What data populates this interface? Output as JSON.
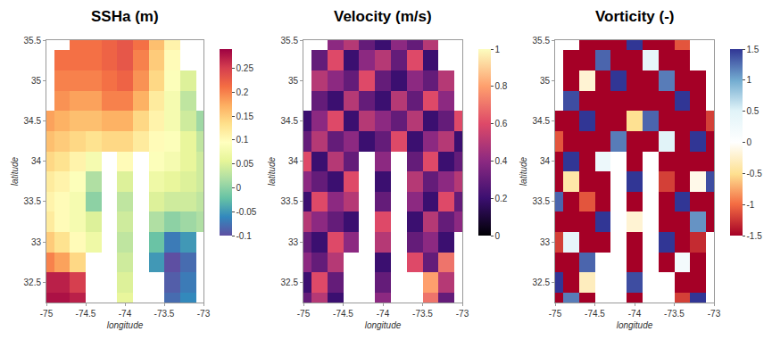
{
  "chart_data": [
    {
      "type": "heatmap",
      "title": "SSHa (m)",
      "x_label": "longitude",
      "y_label": "latitude",
      "x": [
        -75,
        -74.8,
        -74.6,
        -74.4,
        -74.2,
        -74.0,
        -73.8,
        -73.6,
        -73.4,
        -73.2,
        -73.0
      ],
      "y": [
        32.25,
        32.5,
        32.75,
        33.0,
        33.25,
        33.5,
        33.75,
        34.0,
        34.25,
        34.5,
        34.75,
        35.0,
        35.25,
        35.5
      ],
      "z": [
        [
          0.28,
          0.28,
          0.27,
          null,
          null,
          0.06,
          null,
          null,
          -0.08,
          -0.06,
          null
        ],
        [
          0.27,
          0.27,
          0.25,
          null,
          null,
          0.05,
          null,
          null,
          -0.09,
          -0.07,
          null
        ],
        [
          0.2,
          0.18,
          0.14,
          null,
          null,
          0.04,
          null,
          -0.05,
          -0.1,
          -0.08,
          null
        ],
        [
          0.15,
          0.13,
          0.1,
          0.07,
          null,
          0.03,
          null,
          -0.02,
          -0.07,
          -0.05,
          null
        ],
        [
          0.12,
          0.1,
          0.08,
          0.05,
          null,
          0.04,
          null,
          0.02,
          0.0,
          0.01,
          0.02
        ],
        [
          0.11,
          0.1,
          0.08,
          0.0,
          null,
          0.03,
          null,
          0.05,
          0.04,
          0.04,
          0.03
        ],
        [
          0.12,
          0.11,
          0.09,
          0.02,
          null,
          0.05,
          null,
          0.07,
          0.06,
          0.05,
          0.04
        ],
        [
          0.14,
          0.13,
          0.11,
          0.08,
          null,
          0.1,
          null,
          0.09,
          0.08,
          0.06,
          0.04
        ],
        [
          0.16,
          0.15,
          0.14,
          0.13,
          0.14,
          0.14,
          0.12,
          0.1,
          0.09,
          0.06,
          0.03
        ],
        [
          0.18,
          0.17,
          0.16,
          0.16,
          0.17,
          0.17,
          0.14,
          0.11,
          0.08,
          0.04,
          0.01
        ],
        [
          null,
          0.19,
          0.18,
          0.18,
          0.2,
          0.2,
          0.17,
          0.12,
          0.08,
          0.03,
          null
        ],
        [
          null,
          0.2,
          0.2,
          0.2,
          0.21,
          0.22,
          0.19,
          0.14,
          0.09,
          0.05,
          null
        ],
        [
          null,
          0.21,
          0.21,
          0.21,
          0.22,
          0.23,
          0.2,
          0.15,
          0.1,
          null,
          null
        ],
        [
          null,
          null,
          0.21,
          0.21,
          0.22,
          0.23,
          0.21,
          0.16,
          0.11,
          null,
          null
        ]
      ],
      "xlim": [
        -75,
        -73
      ],
      "ylim": [
        32.25,
        35.5
      ],
      "xticks": [
        -75,
        -74.5,
        -74,
        -73.5,
        -73
      ],
      "yticks": [
        32.5,
        33,
        33.5,
        34,
        34.5,
        35,
        35.5
      ],
      "colorbar_range": [
        -0.1,
        0.29
      ],
      "colorbar_ticks": [
        -0.1,
        -0.05,
        0,
        0.05,
        0.1,
        0.15,
        0.2,
        0.25
      ]
    },
    {
      "type": "heatmap",
      "title": "Velocity (m/s)",
      "x_label": "longitude",
      "y_label": "latitude",
      "x": [
        -75,
        -74.8,
        -74.6,
        -74.4,
        -74.2,
        -74.0,
        -73.8,
        -73.6,
        -73.4,
        -73.2,
        -73.0
      ],
      "y": [
        32.25,
        32.5,
        32.75,
        33.0,
        33.25,
        33.5,
        33.75,
        34.0,
        34.25,
        34.5,
        34.75,
        35.0,
        35.25,
        35.5
      ],
      "z": [
        [
          0.3,
          0.5,
          0.2,
          null,
          null,
          0.4,
          null,
          null,
          0.7,
          0.3,
          null
        ],
        [
          0.2,
          0.6,
          0.3,
          null,
          null,
          0.3,
          null,
          null,
          0.8,
          0.5,
          null
        ],
        [
          0.4,
          0.3,
          0.5,
          null,
          null,
          0.2,
          null,
          0.6,
          0.3,
          0.7,
          null
        ],
        [
          0.3,
          0.2,
          0.6,
          0.4,
          null,
          0.5,
          null,
          0.3,
          0.4,
          0.2,
          null
        ],
        [
          0.5,
          0.4,
          0.3,
          0.2,
          null,
          0.6,
          null,
          0.2,
          0.5,
          0.3,
          0.4
        ],
        [
          0.2,
          0.6,
          0.4,
          0.5,
          null,
          0.3,
          null,
          0.4,
          0.2,
          0.6,
          0.3
        ],
        [
          0.4,
          0.3,
          0.2,
          0.6,
          null,
          0.2,
          null,
          0.5,
          0.3,
          0.4,
          0.5
        ],
        [
          0.6,
          0.2,
          0.5,
          0.3,
          null,
          0.4,
          null,
          0.3,
          0.6,
          0.2,
          0.3
        ],
        [
          0.3,
          0.5,
          0.3,
          0.4,
          0.2,
          0.3,
          0.6,
          0.2,
          0.4,
          0.5,
          0.2
        ],
        [
          0.2,
          0.4,
          0.6,
          0.2,
          0.5,
          0.4,
          0.3,
          0.5,
          0.2,
          0.3,
          0.6
        ],
        [
          null,
          0.3,
          0.2,
          0.5,
          0.3,
          0.2,
          0.5,
          0.3,
          0.6,
          0.4,
          null
        ],
        [
          null,
          0.5,
          0.4,
          0.3,
          0.6,
          0.3,
          0.2,
          0.4,
          0.3,
          0.5,
          null
        ],
        [
          null,
          0.3,
          0.6,
          0.2,
          0.4,
          0.5,
          0.3,
          0.6,
          0.2,
          null,
          null
        ],
        [
          null,
          null,
          0.4,
          0.5,
          0.3,
          0.2,
          0.4,
          0.3,
          0.5,
          null,
          null
        ]
      ],
      "xlim": [
        -75,
        -73
      ],
      "ylim": [
        32.25,
        35.5
      ],
      "xticks": [
        -75,
        -74.5,
        -74,
        -73.5,
        -73
      ],
      "yticks": [
        32.5,
        33,
        33.5,
        34,
        34.5,
        35,
        35.5
      ],
      "colorbar_range": [
        0,
        1
      ],
      "colorbar_ticks": [
        0,
        0.2,
        0.4,
        0.6,
        0.8,
        1
      ]
    },
    {
      "type": "heatmap",
      "title": "Vorticity (-)",
      "x_label": "longitude",
      "y_label": "latitude",
      "x": [
        -75,
        -74.8,
        -74.6,
        -74.4,
        -74.2,
        -74.0,
        -73.8,
        -73.6,
        -73.4,
        -73.2,
        -73.0
      ],
      "y": [
        32.25,
        32.5,
        32.75,
        33.0,
        33.25,
        33.5,
        33.75,
        34.0,
        34.25,
        34.5,
        34.75,
        35.0,
        35.25,
        35.5
      ],
      "z": [
        [
          -1.5,
          1.2,
          -1.5,
          null,
          null,
          -1.5,
          null,
          null,
          -1.2,
          1.5,
          null
        ],
        [
          1.5,
          -1.5,
          -0.3,
          null,
          null,
          1.4,
          null,
          null,
          -1.5,
          -1.5,
          null
        ],
        [
          -1.5,
          -1.5,
          1.3,
          null,
          null,
          -1.5,
          null,
          -1.5,
          0.2,
          -1.5,
          null
        ],
        [
          -1.2,
          0.4,
          -1.5,
          -1.5,
          null,
          -1.5,
          null,
          1.5,
          -1.5,
          -1.3,
          null
        ],
        [
          -1.5,
          -1.5,
          -1.5,
          1.5,
          null,
          -0.2,
          null,
          -1.5,
          -1.5,
          1.1,
          -1.5
        ],
        [
          1.3,
          -1.5,
          -1.1,
          -1.5,
          null,
          -1.5,
          null,
          -1.5,
          1.5,
          -1.5,
          -1.5
        ],
        [
          -1.5,
          -0.4,
          -1.5,
          -1.5,
          null,
          1.5,
          null,
          -1.2,
          -1.5,
          -0.1,
          1.4
        ],
        [
          -1.5,
          1.5,
          -1.5,
          0.3,
          null,
          -1.5,
          null,
          -1.5,
          -1.5,
          -1.5,
          -1.5
        ],
        [
          -1.1,
          -1.5,
          -1.5,
          -1.5,
          1.2,
          -1.5,
          -1.5,
          0.5,
          -1.5,
          1.5,
          -1.5
        ],
        [
          -1.5,
          -1.5,
          1.5,
          -1.5,
          -1.5,
          -0.5,
          1.3,
          -1.5,
          -1.5,
          -1.5,
          -1.2
        ],
        [
          null,
          1.4,
          -1.5,
          -1.5,
          -1.5,
          -1.5,
          -1.5,
          -1.5,
          1.5,
          -1.5,
          null
        ],
        [
          null,
          -1.5,
          -0.2,
          -1.5,
          1.5,
          -1.5,
          -1.5,
          1.2,
          -1.5,
          -1.5,
          null
        ],
        [
          null,
          -1.5,
          -1.5,
          1.3,
          -1.5,
          -1.5,
          0.4,
          -1.5,
          -1.5,
          null,
          null
        ],
        [
          null,
          null,
          -1.5,
          -1.5,
          -1.5,
          1.5,
          -1.5,
          -1.5,
          -1.1,
          null,
          null
        ]
      ],
      "xlim": [
        -75,
        -73
      ],
      "ylim": [
        32.25,
        35.5
      ],
      "xticks": [
        -75,
        -74.5,
        -74,
        -73.5,
        -73
      ],
      "yticks": [
        32.5,
        33,
        33.5,
        34,
        34.5,
        35,
        35.5
      ],
      "colorbar_range": [
        -1.5,
        1.5
      ],
      "colorbar_ticks": [
        -1.5,
        -1,
        -0.5,
        0,
        0.5,
        1,
        1.5
      ]
    }
  ]
}
